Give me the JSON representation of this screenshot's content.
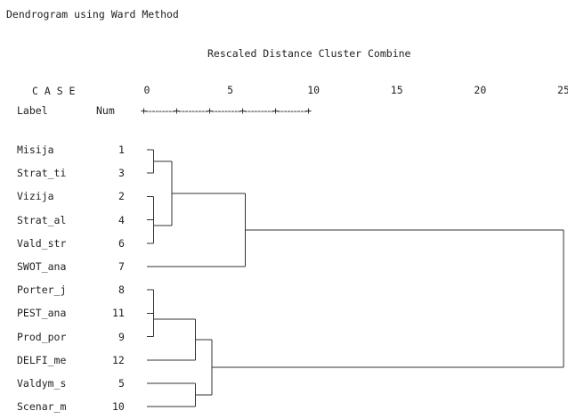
{
  "title": "Dendrogram using Ward Method",
  "subtitle": "Rescaled Distance Cluster Combine",
  "header": {
    "case_label": "C A S E",
    "label_col": "Label",
    "num_col": "Num",
    "ruler": "+---------+---------+---------+---------+---------+"
  },
  "scale": {
    "min": 0,
    "max": 25,
    "ticks": [
      "0",
      "5",
      "10",
      "15",
      "20",
      "25"
    ]
  },
  "cases": [
    {
      "label": "Misija",
      "num": "1"
    },
    {
      "label": "Strat_ti",
      "num": "3"
    },
    {
      "label": "Vizija",
      "num": "2"
    },
    {
      "label": "Strat_al",
      "num": "4"
    },
    {
      "label": "Vald_str",
      "num": "6"
    },
    {
      "label": "SWOT_ana",
      "num": "7"
    },
    {
      "label": "Porter_j",
      "num": "8"
    },
    {
      "label": "PEST_ana",
      "num": "11"
    },
    {
      "label": "Prod_por",
      "num": "9"
    },
    {
      "label": "DELFI_me",
      "num": "12"
    },
    {
      "label": "Valdym_s",
      "num": "5"
    },
    {
      "label": "Scenar_m",
      "num": "10"
    }
  ],
  "merges": [
    {
      "a": "Misija",
      "b": "Strat_ti",
      "distance": 0.4
    },
    {
      "a": "Vizija",
      "b": "Strat_al",
      "distance": 0.4
    },
    {
      "a": "Vald_str",
      "b": "Strat_al",
      "distance": 0.4
    },
    {
      "a": "Misija",
      "b": "Vizija",
      "distance": 1.5
    },
    {
      "a": "Misija",
      "b": "SWOT_ana",
      "distance": 5.9
    },
    {
      "a": "Porter_j",
      "b": "PEST_ana",
      "distance": 0.4
    },
    {
      "a": "Prod_por",
      "b": "PEST_ana",
      "distance": 0.4
    },
    {
      "a": "Porter_j",
      "b": "DELFI_me",
      "distance": 2.9
    },
    {
      "a": "Valdym_s",
      "b": "Scenar_m",
      "distance": 2.9
    },
    {
      "a": "Porter_j",
      "b": "Valdym_s",
      "distance": 3.9
    },
    {
      "a": "Misija",
      "b": "Porter_j",
      "distance": 25
    }
  ]
}
